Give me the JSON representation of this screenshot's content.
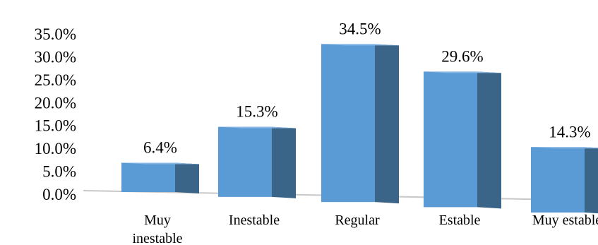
{
  "chart_data": {
    "type": "bar",
    "style": "3d-column",
    "categories": [
      [
        "Muy",
        "inestable"
      ],
      [
        "Inestable"
      ],
      [
        "Regular"
      ],
      [
        "Estable"
      ],
      [
        "Muy estable"
      ]
    ],
    "values": [
      6.4,
      15.3,
      34.5,
      29.6,
      14.3
    ],
    "data_labels": [
      "6.4%",
      "15.3%",
      "34.5%",
      "29.6%",
      "14.3%"
    ],
    "y_ticks": [
      "0.0%",
      "5.0%",
      "10.0%",
      "15.0%",
      "20.0%",
      "25.0%",
      "30.0%",
      "35.0%"
    ],
    "ylim": [
      0,
      35
    ],
    "title": "",
    "xlabel": "",
    "ylabel": "",
    "grid": false,
    "legend": "none",
    "colors": {
      "front": "#5b9bd5",
      "side": "#3a6589",
      "top": "#8ab8e6",
      "floor": "#c8c8c8"
    }
  }
}
